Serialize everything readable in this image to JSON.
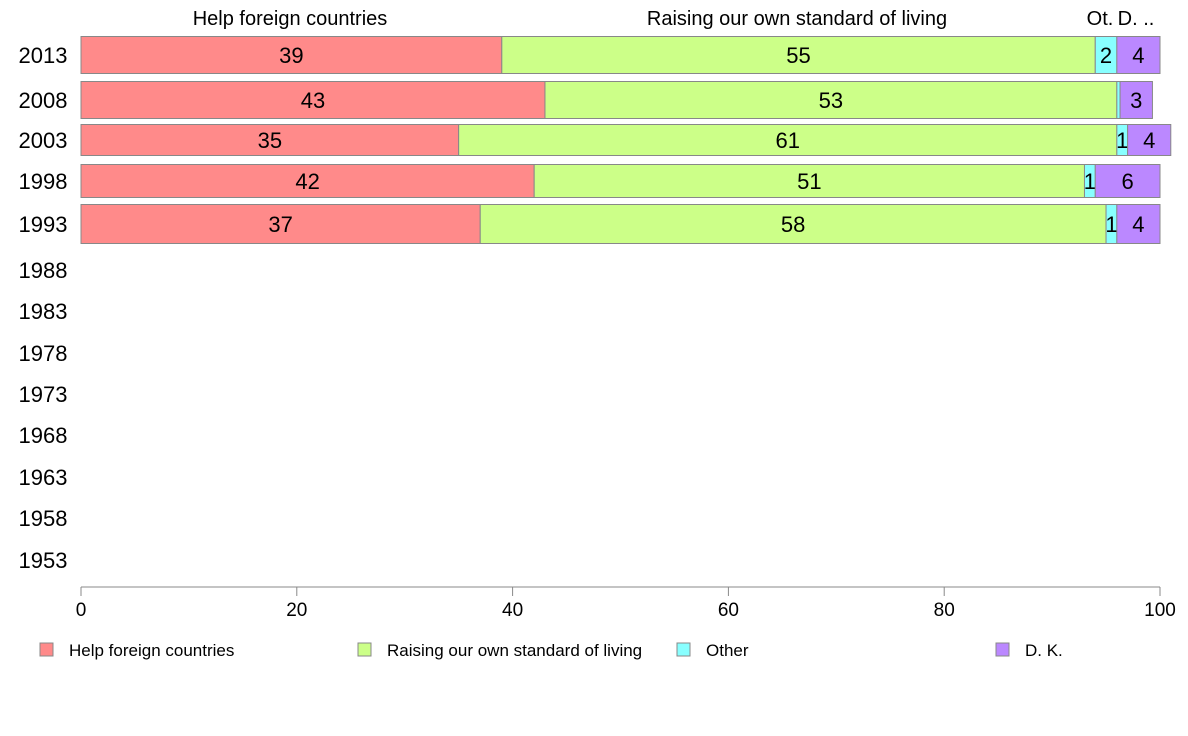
{
  "chart_data": {
    "type": "bar",
    "orientation": "horizontal",
    "stacked": true,
    "categories": [
      "2013",
      "2008",
      "2003",
      "1998",
      "1993",
      "1988",
      "1983",
      "1978",
      "1973",
      "1968",
      "1963",
      "1958",
      "1953"
    ],
    "series": [
      {
        "name": "Help foreign countries",
        "color": "#ff8a8a",
        "values": [
          39,
          43,
          35,
          42,
          37,
          null,
          null,
          null,
          null,
          null,
          null,
          null,
          null
        ]
      },
      {
        "name": "Raising our own standard of living",
        "color": "#ccff88",
        "values": [
          55,
          53,
          61,
          51,
          58,
          null,
          null,
          null,
          null,
          null,
          null,
          null,
          null
        ]
      },
      {
        "name": "Other",
        "color": "#88ffff",
        "values": [
          2,
          0.3,
          1,
          1,
          1,
          null,
          null,
          null,
          null,
          null,
          null,
          null,
          null
        ]
      },
      {
        "name": "D. K.",
        "color": "#bb88ff",
        "values": [
          4,
          3,
          4,
          6,
          4,
          null,
          null,
          null,
          null,
          null,
          null,
          null,
          null
        ]
      }
    ],
    "segment_labels": [
      [
        "39",
        "55",
        "2",
        "4"
      ],
      [
        "43",
        "53",
        "",
        "3"
      ],
      [
        "35",
        "61",
        "1",
        "4"
      ],
      [
        "42",
        "51",
        "1",
        "6"
      ],
      [
        "37",
        "58",
        "1",
        "4"
      ]
    ],
    "header_labels": [
      "Help foreign countries",
      "Raising our own standard of living",
      "Ot.",
      "D. .."
    ],
    "xlim": [
      0,
      100
    ],
    "x_ticks": [
      "0",
      "20",
      "40",
      "60",
      "80",
      "100"
    ],
    "grid": false,
    "legend_position": "bottom"
  }
}
